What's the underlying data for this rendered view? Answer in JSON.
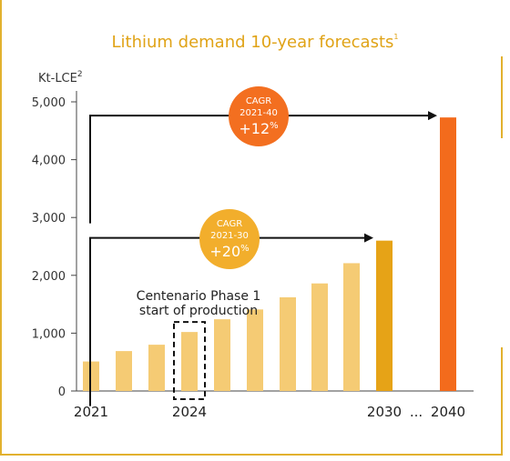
{
  "chart_data": {
    "type": "bar",
    "title": "Lithium demand 10-year forecasts",
    "title_footnote": "1",
    "ylabel": "Kt-LCE",
    "ylabel_superscript": "2",
    "ylim": [
      0,
      5000
    ],
    "yticks": [
      "0",
      "1,000",
      "2,000",
      "3,000",
      "4,000",
      "5,000"
    ],
    "categories": [
      "2021",
      "2022",
      "2023",
      "2024",
      "2025",
      "2026",
      "2027",
      "2028",
      "2029",
      "2030",
      "2040"
    ],
    "values": [
      510,
      690,
      800,
      1020,
      1240,
      1410,
      1620,
      1860,
      2210,
      2600,
      4730
    ],
    "x_tick_labels": {
      "2021": "2021",
      "2024": "2024",
      "2030": "2030",
      "2040": "2040"
    },
    "ellipsis": "...",
    "colors": {
      "bar": "#f5cb74",
      "highlight_2030": "#e6a317",
      "highlight_2040": "#f36b1c",
      "axis": "#444444"
    },
    "annotations": {
      "phase_label": [
        "Centenario Phase 1",
        "start of production"
      ],
      "cagr_2030": {
        "line1": "CAGR",
        "line2": "2021-30",
        "value": "+20",
        "unit": "%",
        "color": "#f2ae2c"
      },
      "cagr_2040": {
        "line1": "CAGR",
        "line2": "2021-40",
        "value": "+12",
        "unit": "%",
        "color": "#f36f20"
      }
    }
  }
}
